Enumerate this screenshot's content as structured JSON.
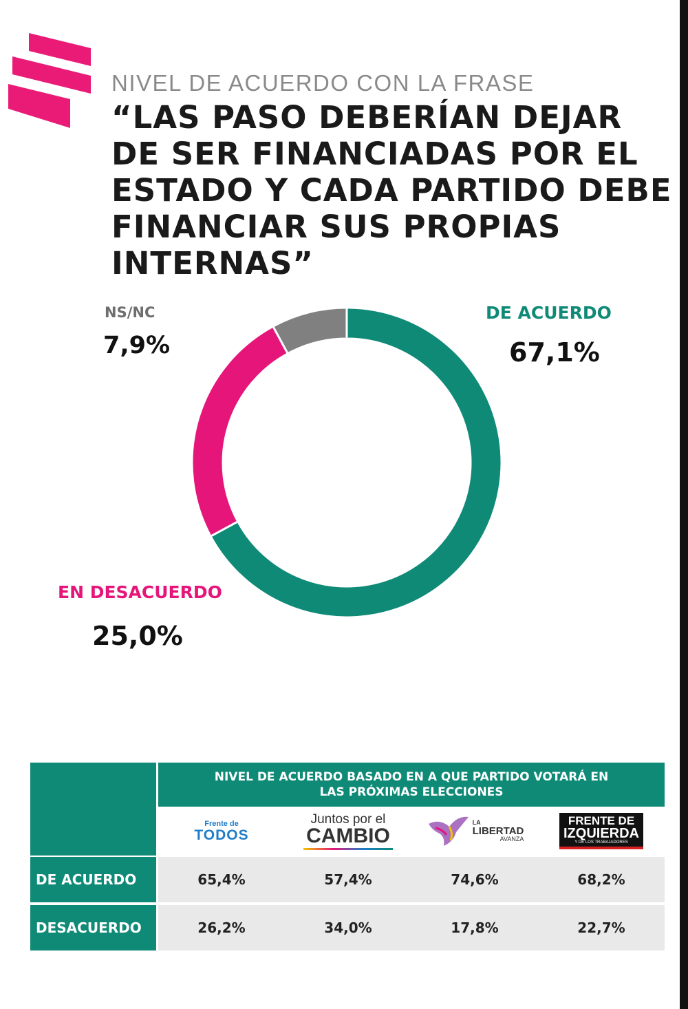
{
  "header": {
    "subtitle": "NIVEL DE ACUERDO CON LA FRASE",
    "title": "“LAS PASO DEBERÍAN DEJAR DE SER FINANCIADAS POR EL ESTADO Y CADA PARTIDO DEBE FINANCIAR SUS PROPIAS INTERNAS”"
  },
  "colors": {
    "accent": "#ea1b77",
    "teal": "#0e8a77",
    "gray": "#808080"
  },
  "chart_data": {
    "type": "pie",
    "subtype": "donut",
    "slices": [
      {
        "label": "DE ACUERDO",
        "value": 67.1,
        "display": "67,1%",
        "color": "#0e8a77"
      },
      {
        "label": "EN DESACUERDO",
        "value": 25.0,
        "display": "25,0%",
        "color": "#e5157a"
      },
      {
        "label": "NS/NC",
        "value": 7.9,
        "display": "7,9%",
        "color": "#808080"
      }
    ]
  },
  "table": {
    "header": "NIVEL DE ACUERDO BASADO EN A QUE PARTIDO VOTARÁ EN LAS PRÓXIMAS ELECCIONES",
    "parties": [
      {
        "line1": "Frente de",
        "line2": "TODOS"
      },
      {
        "line1": "Juntos por el",
        "line2": "CAMBIO"
      },
      {
        "line1": "LA",
        "line2": "LIBERTAD",
        "line3": "AVANZA"
      },
      {
        "line1": "FRENTE DE",
        "line2": "IZQUIERDA",
        "line3": "Y DE LOS TRABAJADORES"
      }
    ],
    "rows": [
      {
        "label": "DE ACUERDO",
        "values": [
          "65,4%",
          "57,4%",
          "74,6%",
          "68,2%"
        ]
      },
      {
        "label": "DESACUERDO",
        "values": [
          "26,2%",
          "34,0%",
          "17,8%",
          "22,7%"
        ]
      }
    ]
  }
}
